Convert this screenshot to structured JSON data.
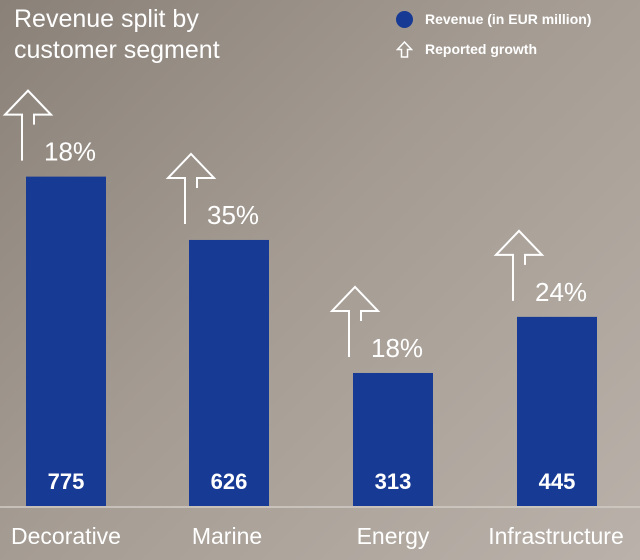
{
  "chart_data": {
    "type": "bar",
    "title": "Revenue split by customer segment",
    "categories": [
      "Decorative",
      "Marine",
      "Energy",
      "Infrastructure"
    ],
    "series": [
      {
        "name": "Revenue (in EUR million)",
        "values": [
          775,
          626,
          313,
          445
        ]
      }
    ],
    "growth": {
      "name": "Reported growth",
      "values": [
        "18%",
        "35%",
        "18%",
        "24%"
      ]
    },
    "ylim": [
      0,
      800
    ],
    "grid": false,
    "legend_position": "top-right",
    "bar_color": "#173a95",
    "text_color": "#ffffff"
  }
}
